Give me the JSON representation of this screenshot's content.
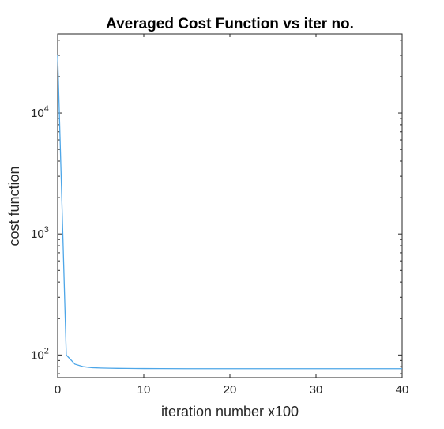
{
  "chart_data": {
    "type": "line",
    "title": "Averaged Cost Function vs iter no.",
    "xlabel": "iteration number x100",
    "ylabel": "cost function",
    "xlim": [
      0,
      40
    ],
    "ylim": [
      65,
      45000
    ],
    "yscale": "log",
    "xticks": [
      0,
      10,
      20,
      30,
      40
    ],
    "xtick_labels": [
      "0",
      "10",
      "20",
      "30",
      "40"
    ],
    "yticks": [
      {
        "value": 100,
        "base": "10",
        "exp": "2"
      },
      {
        "value": 1000,
        "base": "10",
        "exp": "3"
      },
      {
        "value": 10000,
        "base": "10",
        "exp": "4"
      }
    ],
    "line_color": "#4DA6E8",
    "grid": false,
    "series": [
      {
        "x": [
          0,
          1,
          2,
          3,
          4,
          5,
          6,
          7,
          8,
          9,
          10,
          12,
          15,
          20,
          25,
          30,
          35,
          40
        ],
        "y": [
          30000,
          100,
          84,
          80,
          78.5,
          78,
          77.7,
          77.5,
          77.4,
          77.3,
          77.2,
          77.1,
          77.0,
          77.0,
          77.0,
          77.0,
          77.0,
          77.0
        ]
      }
    ]
  }
}
